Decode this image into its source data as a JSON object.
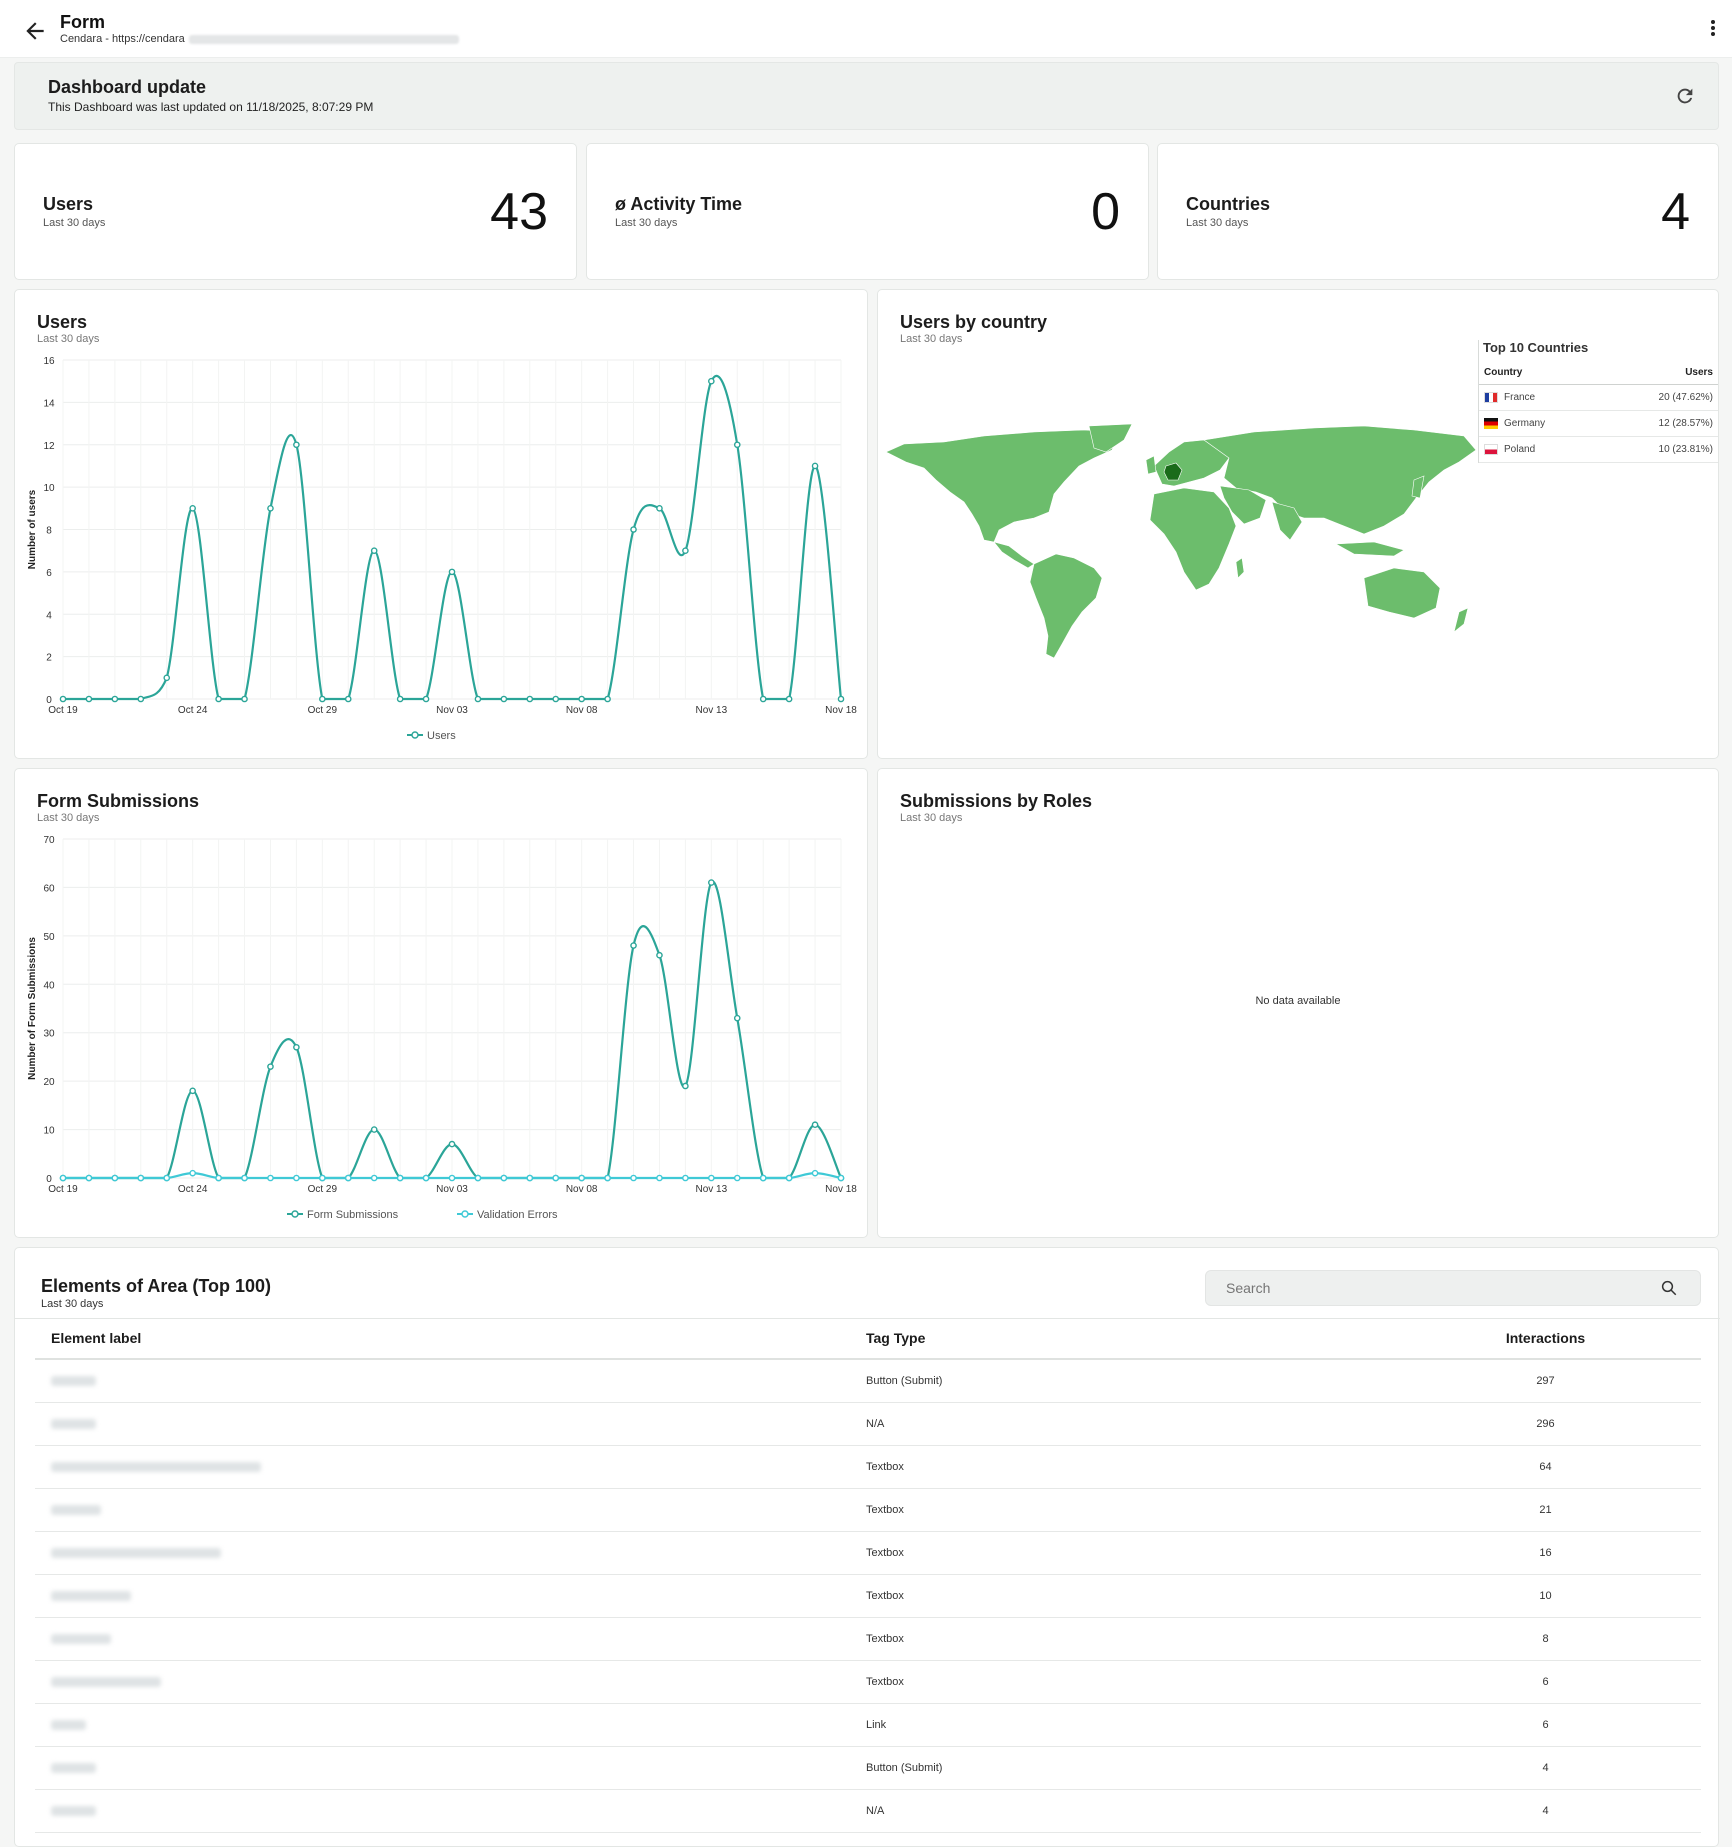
{
  "header": {
    "title": "Form",
    "subtitle": "Cendara - https://cendara"
  },
  "banner": {
    "title": "Dashboard update",
    "text": "This Dashboard was last updated on 11/18/2025, 8:07:29 PM"
  },
  "stats": [
    {
      "label": "Users",
      "sub": "Last 30 days",
      "value": "43"
    },
    {
      "label": "ø Activity Time",
      "sub": "Last 30 days",
      "value": "0"
    },
    {
      "label": "Countries",
      "sub": "Last 30 days",
      "value": "4"
    }
  ],
  "users_chart": {
    "title": "Users",
    "sub": "Last 30 days"
  },
  "country_card": {
    "title": "Users by country",
    "sub": "Last 30 days",
    "table_title": "Top 10 Countries",
    "col_country": "Country",
    "col_users": "Users",
    "rows": [
      {
        "country": "France",
        "users": "20 (47.62%)"
      },
      {
        "country": "Germany",
        "users": "12 (28.57%)"
      },
      {
        "country": "Poland",
        "users": "10 (23.81%)"
      }
    ],
    "map_color": "#6cbd6c",
    "highlight_color": "#1a6b1a"
  },
  "submissions_chart": {
    "title": "Form Submissions",
    "sub": "Last 30 days"
  },
  "roles_card": {
    "title": "Submissions by Roles",
    "sub": "Last 30 days",
    "empty": "No data available"
  },
  "elements": {
    "title": "Elements of Area (Top 100)",
    "sub": "Last 30 days",
    "search_placeholder": "Search",
    "col_label": "Element label",
    "col_tag": "Tag Type",
    "col_interactions": "Interactions",
    "rows": [
      {
        "tag": "Button (Submit)",
        "interactions": "297"
      },
      {
        "tag": "N/A",
        "interactions": "296"
      },
      {
        "tag": "Textbox",
        "interactions": "64"
      },
      {
        "tag": "Textbox",
        "interactions": "21"
      },
      {
        "tag": "Textbox",
        "interactions": "16"
      },
      {
        "tag": "Textbox",
        "interactions": "10"
      },
      {
        "tag": "Textbox",
        "interactions": "8"
      },
      {
        "tag": "Textbox",
        "interactions": "6"
      },
      {
        "tag": "Link",
        "interactions": "6"
      },
      {
        "tag": "Button (Submit)",
        "interactions": "4"
      },
      {
        "tag": "N/A",
        "interactions": "4"
      }
    ]
  },
  "chart_data": [
    {
      "type": "line",
      "ylabel": "Number of users",
      "ylim": [
        0,
        16
      ],
      "yticks": [
        0,
        2,
        4,
        6,
        8,
        10,
        12,
        14,
        16
      ],
      "x": [
        "Oct 19",
        "Oct 20",
        "Oct 21",
        "Oct 22",
        "Oct 23",
        "Oct 24",
        "Oct 25",
        "Oct 26",
        "Oct 27",
        "Oct 28",
        "Oct 29",
        "Oct 30",
        "Oct 31",
        "Nov 01",
        "Nov 02",
        "Nov 03",
        "Nov 04",
        "Nov 05",
        "Nov 06",
        "Nov 07",
        "Nov 08",
        "Nov 09",
        "Nov 10",
        "Nov 11",
        "Nov 12",
        "Nov 13",
        "Nov 14",
        "Nov 15",
        "Nov 16",
        "Nov 17",
        "Nov 18"
      ],
      "xticks": [
        "Oct 19",
        "Oct 24",
        "Oct 29",
        "Nov 03",
        "Nov 08",
        "Nov 13",
        "Nov 18"
      ],
      "series": [
        {
          "name": "Users",
          "color": "#2ba598",
          "values": [
            0,
            0,
            0,
            0,
            1,
            9,
            0,
            0,
            9,
            12,
            0,
            0,
            7,
            0,
            0,
            6,
            0,
            0,
            0,
            0,
            0,
            0,
            8,
            9,
            7,
            15,
            12,
            0,
            0,
            11,
            0
          ]
        }
      ],
      "legend": "bottom"
    },
    {
      "type": "line",
      "ylabel": "Number of Form Submissions",
      "ylim": [
        0,
        70
      ],
      "yticks": [
        0,
        10,
        20,
        30,
        40,
        50,
        60,
        70
      ],
      "x": [
        "Oct 19",
        "Oct 20",
        "Oct 21",
        "Oct 22",
        "Oct 23",
        "Oct 24",
        "Oct 25",
        "Oct 26",
        "Oct 27",
        "Oct 28",
        "Oct 29",
        "Oct 30",
        "Oct 31",
        "Nov 01",
        "Nov 02",
        "Nov 03",
        "Nov 04",
        "Nov 05",
        "Nov 06",
        "Nov 07",
        "Nov 08",
        "Nov 09",
        "Nov 10",
        "Nov 11",
        "Nov 12",
        "Nov 13",
        "Nov 14",
        "Nov 15",
        "Nov 16",
        "Nov 17",
        "Nov 18"
      ],
      "xticks": [
        "Oct 19",
        "Oct 24",
        "Oct 29",
        "Nov 03",
        "Nov 08",
        "Nov 13",
        "Nov 18"
      ],
      "series": [
        {
          "name": "Form Submissions",
          "color": "#2ba598",
          "values": [
            0,
            0,
            0,
            0,
            0,
            18,
            0,
            0,
            23,
            27,
            0,
            0,
            10,
            0,
            0,
            7,
            0,
            0,
            0,
            0,
            0,
            0,
            48,
            46,
            19,
            61,
            33,
            0,
            0,
            11,
            0
          ]
        },
        {
          "name": "Validation Errors",
          "color": "#3fc9d6",
          "values": [
            0,
            0,
            0,
            0,
            0,
            1,
            0,
            0,
            0,
            0,
            0,
            0,
            0,
            0,
            0,
            0,
            0,
            0,
            0,
            0,
            0,
            0,
            0,
            0,
            0,
            0,
            0,
            0,
            0,
            1,
            0
          ]
        }
      ],
      "legend": "bottom"
    }
  ]
}
